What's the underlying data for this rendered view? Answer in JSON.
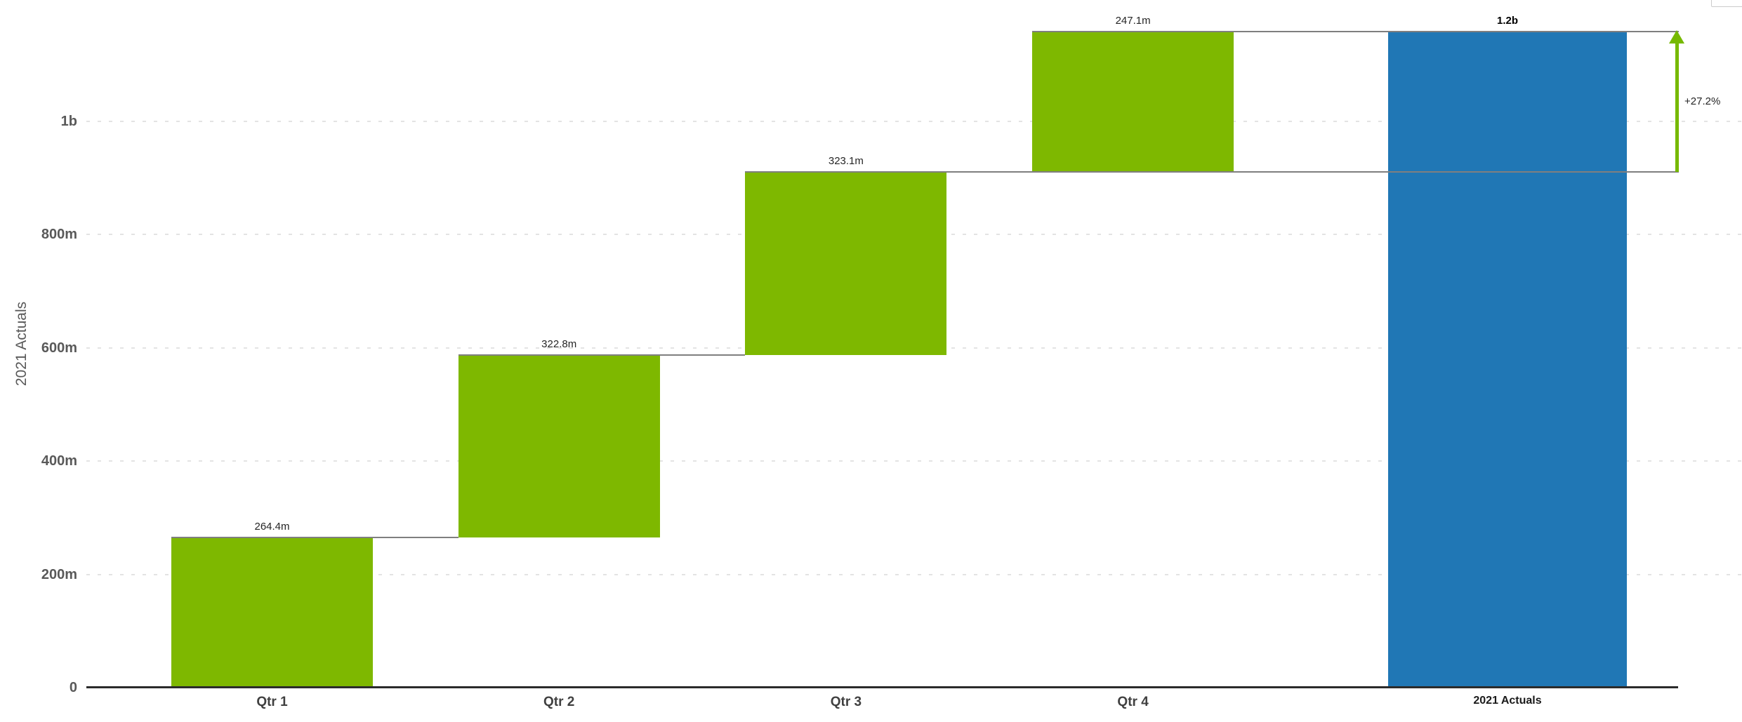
{
  "chart_data": {
    "type": "bar",
    "subtype": "waterfall",
    "title": "",
    "ylabel": "2021 Actuals",
    "xlabel": "",
    "categories": [
      "Qtr 1",
      "Qtr 2",
      "Qtr 3",
      "Qtr 4"
    ],
    "values": [
      264.4,
      322.8,
      323.1,
      247.1
    ],
    "value_labels": [
      "264.4m",
      "322.8m",
      "323.1m",
      "247.1m"
    ],
    "cumulative": [
      264.4,
      587.2,
      910.3,
      1157.4
    ],
    "total": {
      "category": "2021 Actuals",
      "value": 1157.4,
      "label": "1.2b"
    },
    "annotation": {
      "label": "+27.2%",
      "from_value": 910.3,
      "to_value": 1157.4
    },
    "y_ticks": [
      {
        "label": "0",
        "value": 0
      },
      {
        "label": "200m",
        "value": 200
      },
      {
        "label": "400m",
        "value": 400
      },
      {
        "label": "600m",
        "value": 600
      },
      {
        "label": "800m",
        "value": 800
      },
      {
        "label": "1b",
        "value": 1000
      }
    ],
    "ylim": [
      0,
      1240
    ],
    "units": "millions",
    "grid": "dashed-horizontal",
    "legend": "none",
    "colors": {
      "increase": "#7eb800",
      "total": "#2077b5",
      "connector": "#7f7f7f",
      "arrow": "#76b900",
      "axis_line": "#2b2b2b",
      "gridline": "#e3e3e3"
    }
  }
}
